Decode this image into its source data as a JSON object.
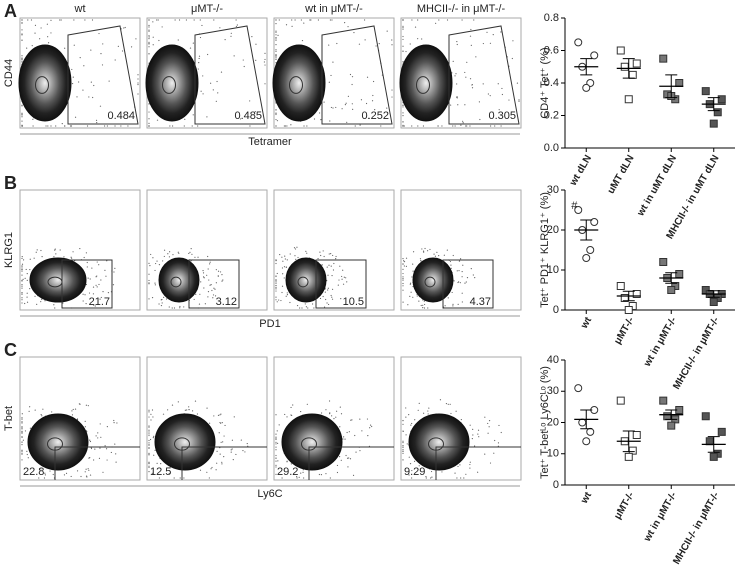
{
  "panels": [
    {
      "label": "A",
      "samples": [
        "wt",
        "μMT-/-",
        "wt in μMT-/-",
        "MHCII-/- in μMT-/-"
      ],
      "y_axis": "CD44",
      "x_axis": "Tetramer",
      "gate_values": [
        "0.484",
        "0.485",
        "0.252",
        "0.305"
      ]
    },
    {
      "label": "B",
      "y_axis": "KLRG1",
      "x_axis": "PD1",
      "gate_values": [
        "21.7",
        "3.12",
        "10.5",
        "4.37"
      ]
    },
    {
      "label": "C",
      "y_axis": "T-bet",
      "x_axis": "Ly6C",
      "gate_values": [
        "22.8",
        "12.5",
        "29.2",
        "9.29"
      ]
    }
  ],
  "chart_data": [
    {
      "type": "dot",
      "y_label": "CD4⁺ Tet⁺ (%)",
      "categories": [
        "wt dLN",
        "uMT dLN",
        "wt in uMT dLN",
        "MHCII-/- in uMT dLN"
      ],
      "markers": [
        "circle",
        "square",
        "square",
        "square"
      ],
      "fills": [
        "none",
        "none",
        "#777777",
        "#555555"
      ],
      "values": [
        [
          0.65,
          0.57,
          0.5,
          0.4,
          0.37
        ],
        [
          0.6,
          0.52,
          0.5,
          0.45,
          0.3
        ],
        [
          0.55,
          0.4,
          0.33,
          0.3,
          0.32
        ],
        [
          0.35,
          0.3,
          0.27,
          0.22,
          0.15
        ]
      ],
      "means": [
        0.5,
        0.49,
        0.38,
        0.27
      ],
      "errors": [
        0.05,
        0.06,
        0.07,
        0.04
      ],
      "ylim": [
        0,
        0.8
      ],
      "yticks": [
        {
          "value": 0,
          "label": "0.0"
        },
        0.2,
        0.4,
        0.6,
        0.8
      ]
    },
    {
      "type": "dot",
      "y_label": "Tet⁺ PD1⁺ KLRG1⁺ (%)",
      "annotation": "#",
      "categories": [
        "wt",
        "μMT-/-",
        "wt in μMT-/-",
        "MHCII-/- in μMT-/-"
      ],
      "markers": [
        "circle",
        "square",
        "square",
        "square"
      ],
      "fills": [
        "none",
        "none",
        "#777777",
        "#555555"
      ],
      "values": [
        [
          25,
          22,
          20,
          15,
          13
        ],
        [
          6,
          4,
          3,
          1,
          0
        ],
        [
          12,
          9,
          8,
          6,
          5
        ],
        [
          5,
          4,
          4,
          3,
          2
        ]
      ],
      "means": [
        20,
        3.5,
        8,
        4
      ],
      "errors": [
        2.5,
        1.2,
        1.3,
        0.8
      ],
      "ylim": [
        0,
        30
      ],
      "yticks": [
        0,
        10,
        20,
        30
      ]
    },
    {
      "type": "dot",
      "y_label": "Tet⁺ T-betᴸᵒ Ly6Cᴸᵒ (%)",
      "categories": [
        "wt",
        "μMT-/-",
        "wt in μMT-/-",
        "MHCII-/- in μMT-/-"
      ],
      "markers": [
        "circle",
        "square",
        "square",
        "square"
      ],
      "fills": [
        "none",
        "none",
        "#777777",
        "#555555"
      ],
      "values": [
        [
          31,
          24,
          20,
          17,
          14
        ],
        [
          27,
          16,
          14,
          11,
          9
        ],
        [
          27,
          24,
          22,
          21,
          19
        ],
        [
          22,
          17,
          14,
          10,
          9
        ]
      ],
      "means": [
        21,
        14,
        22.5,
        13
      ],
      "errors": [
        3,
        3.3,
        1.5,
        2.5
      ],
      "ylim": [
        0,
        40
      ],
      "yticks": [
        0,
        10,
        20,
        30,
        40
      ]
    }
  ]
}
